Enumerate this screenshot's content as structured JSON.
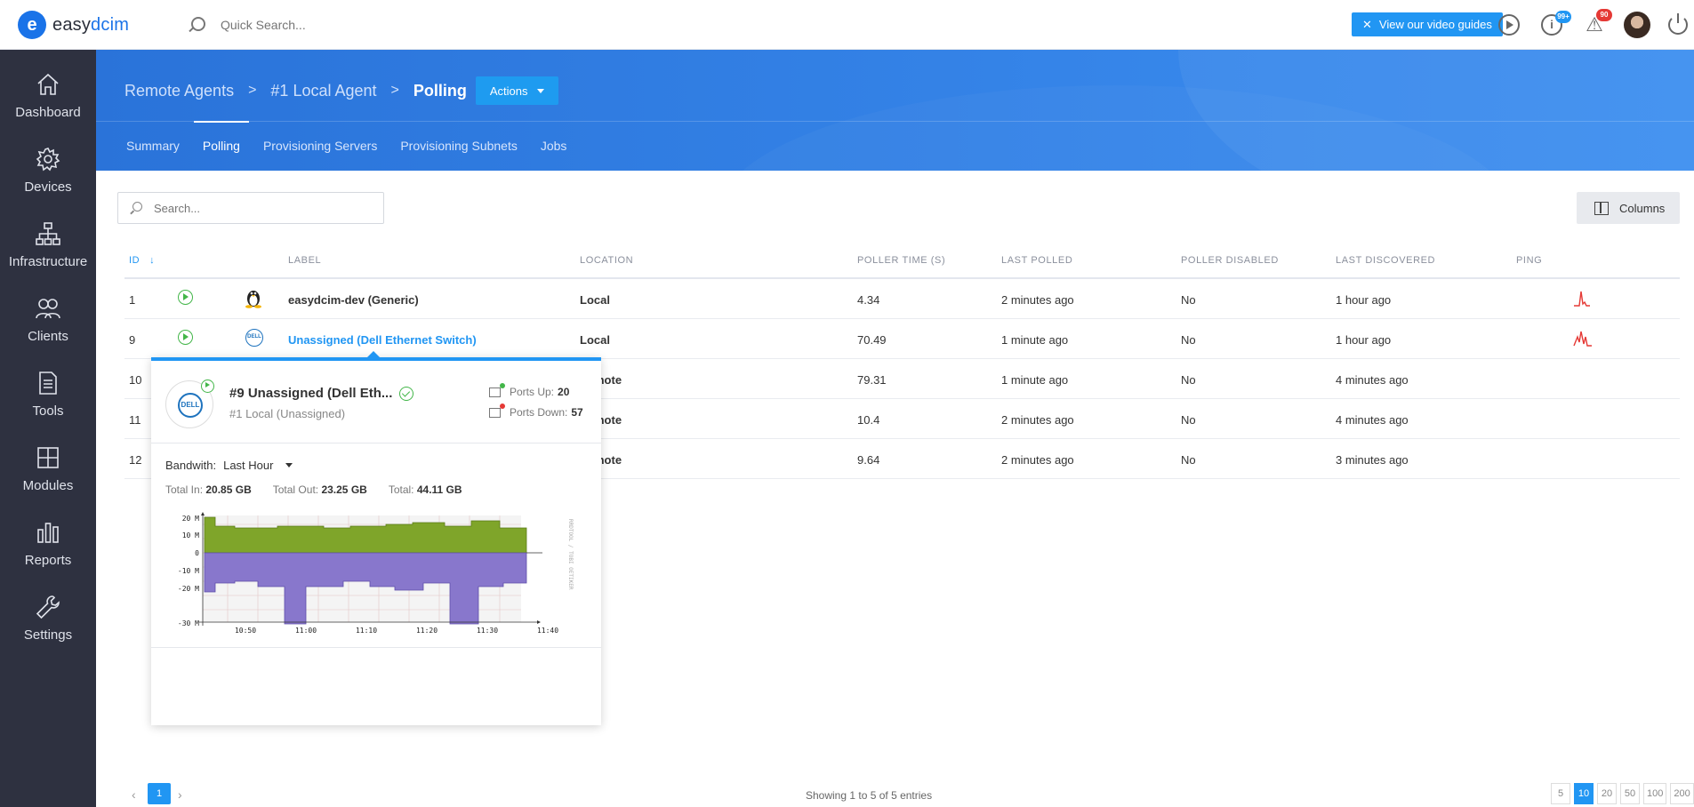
{
  "topbar": {
    "logo_letter": "e",
    "logo_easy": "easy",
    "logo_dcim": "dcim",
    "search_placeholder": "Quick Search...",
    "video_guides": "View our video guides",
    "info_badge": "99+",
    "alerts_badge": "90",
    "accent": "#2196f3"
  },
  "sidebar": {
    "items": [
      {
        "label": "Dashboard",
        "icon": "home-icon"
      },
      {
        "label": "Devices",
        "icon": "gear-icon"
      },
      {
        "label": "Infrastructure",
        "icon": "network-icon"
      },
      {
        "label": "Clients",
        "icon": "users-icon"
      },
      {
        "label": "Tools",
        "icon": "document-icon"
      },
      {
        "label": "Modules",
        "icon": "grid-icon"
      },
      {
        "label": "Reports",
        "icon": "bar-chart-icon"
      },
      {
        "label": "Settings",
        "icon": "wrench-icon"
      }
    ]
  },
  "header": {
    "crumb1": "Remote Agents",
    "crumb2": "#1 Local Agent",
    "crumb3": "Polling",
    "actions": "Actions",
    "tabs": [
      "Summary",
      "Polling",
      "Provisioning Servers",
      "Provisioning Subnets",
      "Jobs"
    ]
  },
  "content": {
    "search_placeholder": "Search...",
    "columns_btn": "Columns"
  },
  "table": {
    "headers": {
      "id": "ID",
      "label": "LABEL",
      "location": "LOCATION",
      "poller_time": "POLLER TIME (S)",
      "last_polled": "LAST POLLED",
      "poller_disabled": "POLLER DISABLED",
      "last_discovered": "LAST DISCOVERED",
      "ping": "PING"
    },
    "rows": [
      {
        "id": "1",
        "label": "easydcim-dev (Generic)",
        "location": "Local",
        "poller_time": "4.34",
        "last_polled": "2 minutes ago",
        "disabled": "No",
        "last_discovered": "1 hour ago"
      },
      {
        "id": "9",
        "label": "Unassigned (Dell Ethernet Switch)",
        "location": "Local",
        "poller_time": "70.49",
        "last_polled": "1 minute ago",
        "disabled": "No",
        "last_discovered": "1 hour ago"
      },
      {
        "id": "10",
        "location": "mote",
        "poller_time": "79.31",
        "last_polled": "1 minute ago",
        "disabled": "No",
        "last_discovered": "4 minutes ago"
      },
      {
        "id": "11",
        "location": "mote",
        "poller_time": "10.4",
        "last_polled": "2 minutes ago",
        "disabled": "No",
        "last_discovered": "4 minutes ago"
      },
      {
        "id": "12",
        "location": "mote",
        "poller_time": "9.64",
        "last_polled": "2 minutes ago",
        "disabled": "No",
        "last_discovered": "3 minutes ago"
      }
    ]
  },
  "popup": {
    "title": "#9 Unassigned (Dell Eth...",
    "subtitle": "#1 Local (Unassigned)",
    "dell": "DELL",
    "ports_up_label": "Ports Up:",
    "ports_up": "20",
    "ports_down_label": "Ports Down:",
    "ports_down": "57",
    "bandwidth_label": "Bandwith:",
    "bandwidth_range": "Last Hour",
    "total_in_label": "Total In:",
    "total_in": "20.85 GB",
    "total_out_label": "Total Out:",
    "total_out": "23.25 GB",
    "total_label": "Total:",
    "total": "44.11 GB",
    "graph": {
      "y_ticks": [
        "20 M",
        "10 M",
        "0",
        "-10 M",
        "-20 M",
        "-30 M"
      ],
      "x_ticks": [
        "10:50",
        "11:00",
        "11:10",
        "11:20",
        "11:30",
        "11:40"
      ],
      "side_label": "RRDTOOL / TOBI OETIKER",
      "in_color": "#7fa52a",
      "out_color": "#8877cc"
    }
  },
  "footer": {
    "page": "1",
    "showing": "Showing 1 to 5 of 5 entries",
    "sizes": [
      "5",
      "10",
      "20",
      "50",
      "100",
      "200"
    ]
  }
}
